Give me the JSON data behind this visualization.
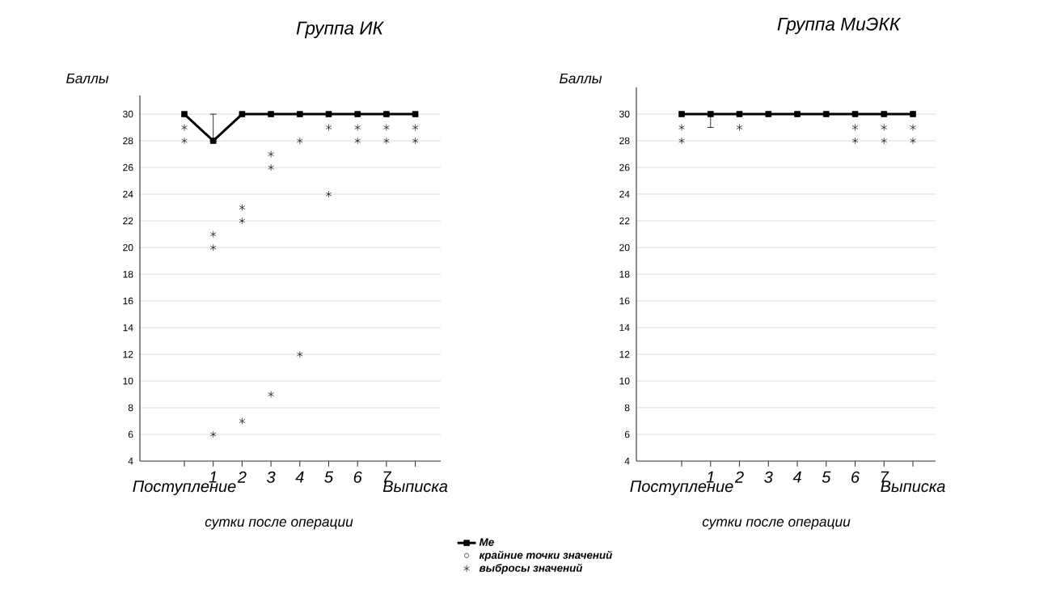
{
  "chart_data": [
    {
      "type": "line",
      "title": "Группа ИК",
      "ylabel": "Баллы",
      "xlabel": "сутки после операции",
      "categories": [
        "Поступление",
        "1",
        "2",
        "3",
        "4",
        "5",
        "6",
        "7",
        "Выписка"
      ],
      "ylim": [
        4,
        31.4
      ],
      "yticks": [
        4,
        6,
        8,
        10,
        12,
        14,
        16,
        18,
        20,
        22,
        24,
        26,
        28,
        30
      ],
      "grid": "y",
      "legend": "bottom",
      "series": [
        {
          "name": "Me",
          "marker": "square",
          "color": "#000000",
          "values": [
            30,
            28,
            30,
            30,
            30,
            30,
            30,
            30,
            30
          ],
          "errors": [
            null,
            [
              28,
              30
            ],
            null,
            null,
            null,
            null,
            null,
            null,
            null
          ]
        },
        {
          "name": "крайние точки значений",
          "type": "scatter",
          "marker": "circle",
          "color": "#000000",
          "values": [
            null,
            null,
            null,
            null,
            null,
            null,
            null,
            null,
            null
          ]
        },
        {
          "name": "выбросы значений",
          "type": "scatter",
          "marker": "cross",
          "color": "#000000",
          "x": [
            "Поступление",
            "Поступление",
            "1",
            "1",
            "1",
            "2",
            "2",
            "2",
            "3",
            "3",
            "3",
            "4",
            "4",
            "5",
            "5",
            "6",
            "6",
            "7",
            "7",
            "Выписка",
            "Выписка"
          ],
          "values": [
            29,
            28,
            21,
            20,
            6,
            23,
            22,
            7,
            27,
            26,
            9,
            28,
            12,
            29,
            24,
            29,
            28,
            29,
            28,
            29,
            28
          ]
        }
      ]
    },
    {
      "type": "line",
      "title": "Группа МиЭКК",
      "ylabel": "Баллы",
      "xlabel": "сутки после операции",
      "categories": [
        "Поступление",
        "1",
        "2",
        "3",
        "4",
        "5",
        "6",
        "7",
        "Выписка"
      ],
      "ylim": [
        4,
        32
      ],
      "yticks": [
        4,
        6,
        8,
        10,
        12,
        14,
        16,
        18,
        20,
        22,
        24,
        26,
        28,
        30
      ],
      "grid": "y",
      "series": [
        {
          "marker": "square",
          "color": "#000000",
          "values": [
            30,
            30,
            30,
            30,
            30,
            30,
            30,
            30,
            30
          ],
          "errors": [
            null,
            [
              29,
              30
            ],
            null,
            null,
            null,
            null,
            null,
            null,
            null
          ]
        },
        {
          "type": "scatter",
          "marker": "cross",
          "color": "#000000",
          "x": [
            "Поступление",
            "Поступление",
            "2",
            "6",
            "6",
            "7",
            "7",
            "Выписка",
            "Выписка"
          ],
          "values": [
            29,
            28,
            29,
            29,
            28,
            29,
            28,
            29,
            28
          ]
        }
      ]
    }
  ]
}
